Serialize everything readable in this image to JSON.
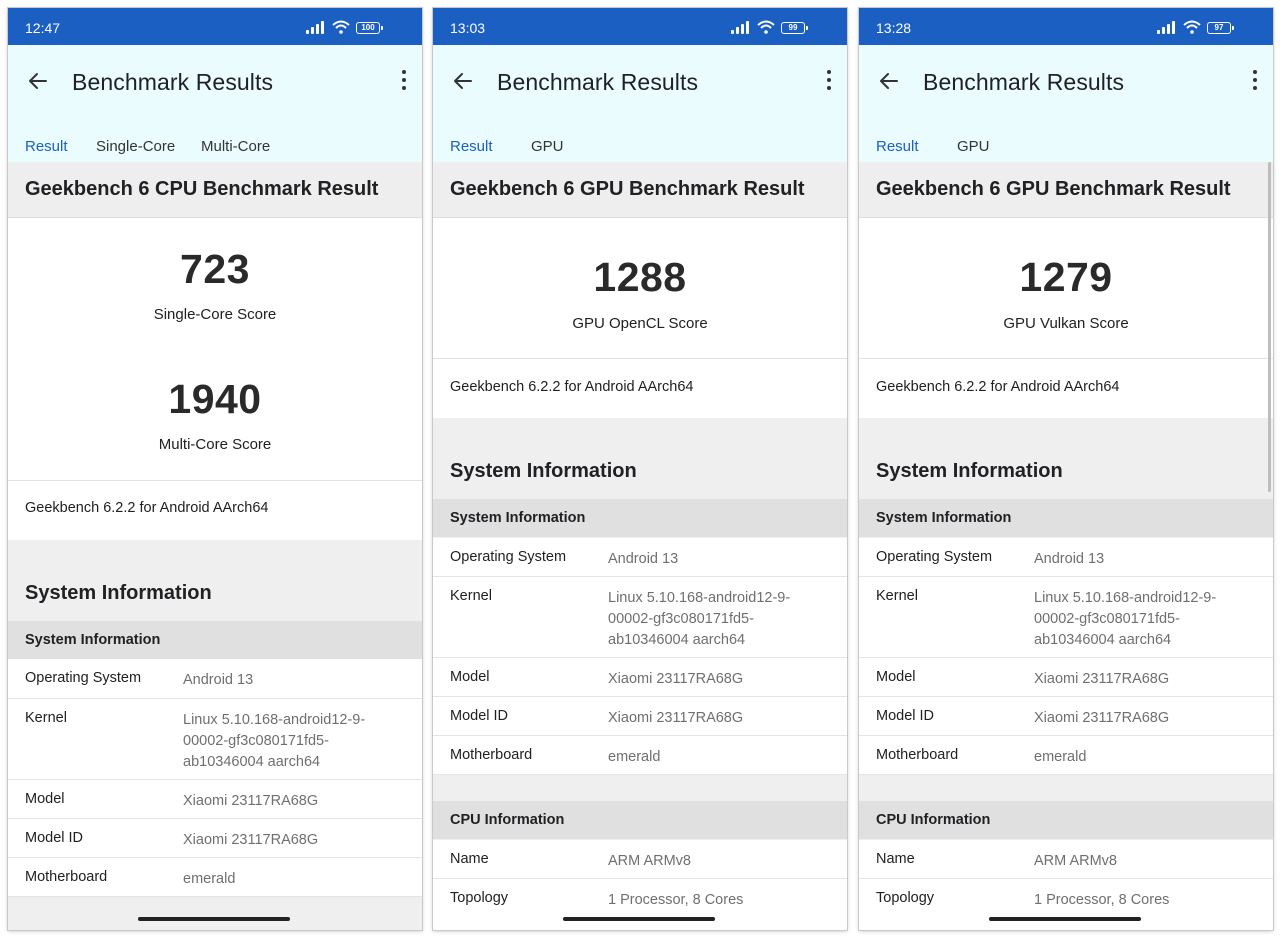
{
  "phones": [
    {
      "status_time": "12:47",
      "battery": "100",
      "title": "Benchmark Results",
      "tabs": [
        "Result",
        "Single-Core",
        "Multi-Core"
      ],
      "header": "Geekbench 6 CPU Benchmark Result",
      "scores": [
        {
          "value": "723",
          "label": "Single-Core Score"
        },
        {
          "value": "1940",
          "label": "Multi-Core Score"
        }
      ],
      "version": "Geekbench 6.2.2 for Android AArch64",
      "sys_title": "System Information",
      "sys_section": "System Information",
      "sys_rows": [
        {
          "k": "Operating System",
          "v": "Android 13"
        },
        {
          "k": "Kernel",
          "v": "Linux 5.10.168-android12-9-00002-gf3c080171fd5-ab10346004 aarch64"
        },
        {
          "k": "Model",
          "v": "Xiaomi 23117RA68G"
        },
        {
          "k": "Model ID",
          "v": "Xiaomi 23117RA68G"
        },
        {
          "k": "Motherboard",
          "v": "emerald"
        }
      ]
    },
    {
      "status_time": "13:03",
      "battery": "99",
      "title": "Benchmark Results",
      "tabs": [
        "Result",
        "GPU"
      ],
      "header": "Geekbench 6 GPU Benchmark Result",
      "scores": [
        {
          "value": "1288",
          "label": "GPU OpenCL Score"
        }
      ],
      "version": "Geekbench 6.2.2 for Android AArch64",
      "sys_title": "System Information",
      "sys_section": "System Information",
      "sys_rows": [
        {
          "k": "Operating System",
          "v": "Android 13"
        },
        {
          "k": "Kernel",
          "v": "Linux 5.10.168-android12-9-00002-gf3c080171fd5-ab10346004 aarch64"
        },
        {
          "k": "Model",
          "v": "Xiaomi 23117RA68G"
        },
        {
          "k": "Model ID",
          "v": "Xiaomi 23117RA68G"
        },
        {
          "k": "Motherboard",
          "v": "emerald"
        }
      ],
      "cpu_section": "CPU Information",
      "cpu_rows": [
        {
          "k": "Name",
          "v": "ARM ARMv8"
        },
        {
          "k": "Topology",
          "v": "1 Processor, 8 Cores"
        }
      ]
    },
    {
      "status_time": "13:28",
      "battery": "97",
      "title": "Benchmark Results",
      "tabs": [
        "Result",
        "GPU"
      ],
      "header": "Geekbench 6 GPU Benchmark Result",
      "scores": [
        {
          "value": "1279",
          "label": "GPU Vulkan Score"
        }
      ],
      "version": "Geekbench 6.2.2 for Android AArch64",
      "sys_title": "System Information",
      "sys_section": "System Information",
      "sys_rows": [
        {
          "k": "Operating System",
          "v": "Android 13"
        },
        {
          "k": "Kernel",
          "v": "Linux 5.10.168-android12-9-00002-gf3c080171fd5-ab10346004 aarch64"
        },
        {
          "k": "Model",
          "v": "Xiaomi 23117RA68G"
        },
        {
          "k": "Model ID",
          "v": "Xiaomi 23117RA68G"
        },
        {
          "k": "Motherboard",
          "v": "emerald"
        }
      ],
      "cpu_section": "CPU Information",
      "cpu_rows": [
        {
          "k": "Name",
          "v": "ARM ARMv8"
        },
        {
          "k": "Topology",
          "v": "1 Processor, 8 Cores"
        }
      ]
    }
  ]
}
